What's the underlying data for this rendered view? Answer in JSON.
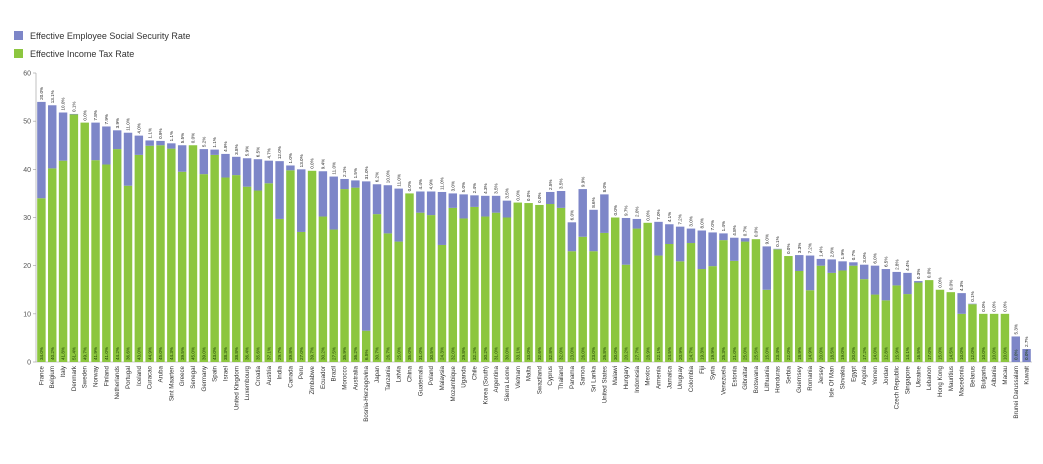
{
  "chart_data": {
    "type": "bar",
    "stacked": true,
    "legend_position": "top-left",
    "grid": false,
    "ylim": [
      0,
      60
    ],
    "yticks": [
      0,
      10,
      20,
      30,
      40,
      50,
      60
    ],
    "series_colors": {
      "income_tax": "#8cc63f",
      "social_security": "#7d86c8"
    },
    "legend": {
      "social_security": "Effective Employee Social Security Rate",
      "income_tax": "Effective Income Tax Rate"
    },
    "categories": [
      "France",
      "Belgium",
      "Italy",
      "Denmark",
      "Sweden",
      "Norway",
      "Finland",
      "Netherlands",
      "Portugal",
      "Iceland",
      "Curacao",
      "Aruba",
      "Sint Maarten",
      "Greece",
      "Senegal",
      "Germany",
      "Spain",
      "Israel",
      "United Kingdom",
      "Luxembourg",
      "Croatia",
      "Austria",
      "India",
      "Canada",
      "Peru",
      "Zimbabwe",
      "Ecuador",
      "Brazil",
      "Morocco",
      "Australia",
      "Bosnia-Herzegovina",
      "Japan",
      "Tanzania",
      "Latvia",
      "China",
      "Guatemala",
      "Poland",
      "Malaysia",
      "Mozambique",
      "Uganda",
      "Chile",
      "Korea (South)",
      "Argentina",
      "Sierra Leone",
      "Vietnam",
      "Malta",
      "Swaziland",
      "Cyprus",
      "Thailand",
      "Panama",
      "Samoa",
      "Sri Lanka",
      "United States",
      "Malawi",
      "Hungary",
      "Indonesia",
      "Mexico",
      "Armenia",
      "Jamaica",
      "Uruguay",
      "Colombia",
      "Fiji",
      "Syria",
      "Venezuela",
      "Estonia",
      "Gibraltar",
      "Botswana",
      "Lithuania",
      "Honduras",
      "Serbia",
      "Guernsey",
      "Romania",
      "Jersey",
      "Isle Of Man",
      "Slovakia",
      "Egypt",
      "Angola",
      "Yemen",
      "Jordan",
      "Czech Republic",
      "Singapore",
      "Ukraine",
      "Lebanon",
      "Hong Kong",
      "Mauritius",
      "Macedonia",
      "Belarus",
      "Bulgaria",
      "Albania",
      "Macau",
      "Brunei Darussalam",
      "Kuwait"
    ],
    "income_tax": [
      34.0,
      40.2,
      41.8,
      51.4,
      49.7,
      41.9,
      41.0,
      44.2,
      36.6,
      43.0,
      44.9,
      45.0,
      44.3,
      39.5,
      45.0,
      39.0,
      43.0,
      38.3,
      38.8,
      36.4,
      35.6,
      37.1,
      29.7,
      39.8,
      27.0,
      39.7,
      30.2,
      27.5,
      35.9,
      36.2,
      6.5,
      30.7,
      26.7,
      25.0,
      35.0,
      31.0,
      30.5,
      24.3,
      32.0,
      29.8,
      32.2,
      30.2,
      31.0,
      30.0,
      33.1,
      33.0,
      32.6,
      32.8,
      32.0,
      23.0,
      26.0,
      23.0,
      26.8,
      30.0,
      20.2,
      27.7,
      28.9,
      22.1,
      24.5,
      20.9,
      24.7,
      19.3,
      19.9,
      25.3,
      21.0,
      25.0,
      25.5,
      15.0,
      23.4,
      22.0,
      18.9,
      14.9,
      20.0,
      18.5,
      19.0,
      20.0,
      17.2,
      14.0,
      12.8,
      15.9,
      14.1,
      16.5,
      17.0,
      15.0,
      14.5,
      10.0,
      12.0,
      10.0,
      10.0,
      10.0,
      0.0,
      0.0
    ],
    "social_security": [
      20.0,
      13.1,
      10.0,
      0.1,
      0.0,
      7.8,
      7.9,
      3.9,
      11.0,
      4.0,
      1.1,
      0.9,
      1.1,
      5.5,
      0.0,
      5.2,
      1.1,
      4.9,
      3.8,
      5.9,
      6.5,
      4.7,
      12.0,
      1.0,
      13.0,
      0.0,
      9.4,
      11.0,
      2.1,
      1.5,
      31.0,
      6.2,
      10.0,
      11.0,
      0.0,
      4.4,
      4.9,
      11.0,
      3.0,
      5.0,
      2.4,
      4.3,
      3.5,
      3.5,
      0.0,
      0.0,
      0.0,
      2.5,
      3.5,
      6.0,
      9.9,
      8.6,
      8.0,
      0.0,
      9.7,
      2.0,
      0.0,
      7.0,
      4.1,
      7.2,
      3.0,
      8.0,
      7.0,
      1.4,
      4.8,
      0.7,
      0.0,
      9.0,
      0.1,
      0.0,
      3.3,
      7.2,
      1.4,
      2.8,
      1.9,
      0.7,
      3.0,
      6.0,
      6.5,
      2.8,
      4.4,
      0.3,
      0.0,
      0.0,
      0.0,
      4.3,
      0.1,
      0.0,
      0.0,
      0.0,
      5.3,
      2.7
    ]
  }
}
